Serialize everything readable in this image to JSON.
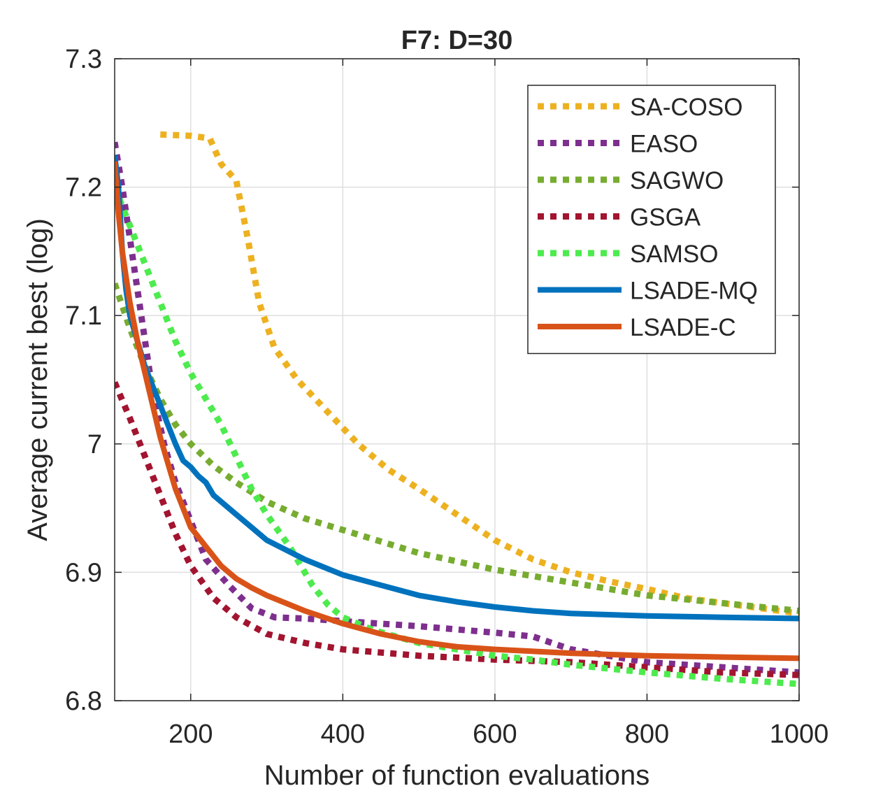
{
  "chart_data": {
    "type": "line",
    "title": "F7: D=30",
    "xlabel": "Number of function evaluations",
    "ylabel": "Average current best (log)",
    "xlim": [
      100,
      1000
    ],
    "ylim": [
      6.8,
      7.3
    ],
    "xticks": [
      200,
      400,
      600,
      800,
      1000
    ],
    "yticks": [
      6.8,
      6.9,
      7.0,
      7.1,
      7.2,
      7.3
    ],
    "xtick_labels": [
      "200",
      "400",
      "600",
      "800",
      "1000"
    ],
    "ytick_labels": [
      "6.8",
      "6.9",
      "7",
      "7.1",
      "7.2",
      "7.3"
    ],
    "grid": true,
    "legend_position": "top-right",
    "series": [
      {
        "name": "SA-COSO",
        "color": "#EDB120",
        "style": "dotted",
        "x": [
          160,
          200,
          225,
          240,
          260,
          275,
          290,
          310,
          340,
          380,
          420,
          460,
          500,
          550,
          600,
          650,
          700,
          750,
          800,
          850,
          900,
          950,
          1000
        ],
        "y": [
          7.241,
          7.24,
          7.238,
          7.218,
          7.205,
          7.16,
          7.11,
          7.075,
          7.05,
          7.025,
          7.0,
          6.98,
          6.965,
          6.945,
          6.925,
          6.91,
          6.9,
          6.893,
          6.887,
          6.88,
          6.876,
          6.872,
          6.868
        ]
      },
      {
        "name": "EASO",
        "color": "#7E2F8E",
        "style": "dotted",
        "x": [
          100,
          110,
          120,
          130,
          140,
          150,
          165,
          180,
          200,
          220,
          250,
          280,
          310,
          350,
          400,
          500,
          600,
          650,
          700,
          800,
          900,
          1000
        ],
        "y": [
          7.235,
          7.2,
          7.16,
          7.12,
          7.08,
          7.04,
          7.0,
          6.97,
          6.94,
          6.91,
          6.89,
          6.872,
          6.865,
          6.864,
          6.862,
          6.858,
          6.853,
          6.85,
          6.84,
          6.83,
          6.826,
          6.822
        ]
      },
      {
        "name": "SAGWO",
        "color": "#77AC30",
        "style": "dotted",
        "x": [
          100,
          120,
          140,
          160,
          180,
          200,
          230,
          260,
          300,
          350,
          400,
          500,
          600,
          700,
          800,
          900,
          1000
        ],
        "y": [
          7.125,
          7.09,
          7.06,
          7.035,
          7.015,
          7.0,
          6.983,
          6.97,
          6.955,
          6.942,
          6.933,
          6.915,
          6.902,
          6.892,
          6.882,
          6.876,
          6.87
        ]
      },
      {
        "name": "GSGA",
        "color": "#A2142F",
        "style": "dotted",
        "x": [
          100,
          120,
          140,
          160,
          180,
          200,
          230,
          260,
          300,
          350,
          400,
          500,
          600,
          700,
          800,
          900,
          1000
        ],
        "y": [
          7.048,
          7.02,
          6.99,
          6.96,
          6.93,
          6.905,
          6.88,
          6.865,
          6.852,
          6.845,
          6.84,
          6.835,
          6.832,
          6.83,
          6.826,
          6.822,
          6.82
        ]
      },
      {
        "name": "SAMSO",
        "color": "#4DEB4D",
        "style": "dotted",
        "x": [
          100,
          120,
          140,
          160,
          180,
          200,
          220,
          240,
          260,
          280,
          300,
          330,
          360,
          380,
          400,
          440,
          500,
          550,
          600,
          650,
          700,
          800,
          900,
          1000
        ],
        "y": [
          7.2,
          7.17,
          7.14,
          7.11,
          7.08,
          7.055,
          7.035,
          7.015,
          6.99,
          6.965,
          6.945,
          6.92,
          6.89,
          6.875,
          6.865,
          6.855,
          6.845,
          6.84,
          6.835,
          6.832,
          6.828,
          6.822,
          6.817,
          6.813
        ]
      },
      {
        "name": "LSADE-MQ",
        "color": "#0072BD",
        "style": "solid",
        "x": [
          100,
          105,
          110,
          115,
          120,
          125,
          130,
          140,
          150,
          160,
          170,
          180,
          190,
          200,
          210,
          220,
          230,
          240,
          260,
          280,
          300,
          350,
          400,
          450,
          500,
          550,
          600,
          650,
          700,
          800,
          900,
          1000
        ],
        "y": [
          7.225,
          7.2,
          7.15,
          7.12,
          7.1,
          7.09,
          7.08,
          7.06,
          7.045,
          7.03,
          7.015,
          7.0,
          6.987,
          6.982,
          6.975,
          6.97,
          6.96,
          6.955,
          6.945,
          6.935,
          6.925,
          6.91,
          6.898,
          6.89,
          6.882,
          6.877,
          6.873,
          6.87,
          6.868,
          6.866,
          6.865,
          6.864
        ]
      },
      {
        "name": "LSADE-C",
        "color": "#D95319",
        "style": "solid",
        "x": [
          100,
          105,
          110,
          115,
          120,
          130,
          140,
          150,
          160,
          170,
          180,
          190,
          200,
          220,
          240,
          260,
          280,
          300,
          350,
          400,
          450,
          500,
          550,
          600,
          700,
          800,
          900,
          1000
        ],
        "y": [
          7.22,
          7.18,
          7.15,
          7.13,
          7.11,
          7.08,
          7.055,
          7.03,
          7.005,
          6.985,
          6.965,
          6.95,
          6.935,
          6.92,
          6.905,
          6.895,
          6.888,
          6.882,
          6.87,
          6.86,
          6.852,
          6.846,
          6.842,
          6.84,
          6.837,
          6.835,
          6.834,
          6.833
        ]
      }
    ]
  }
}
